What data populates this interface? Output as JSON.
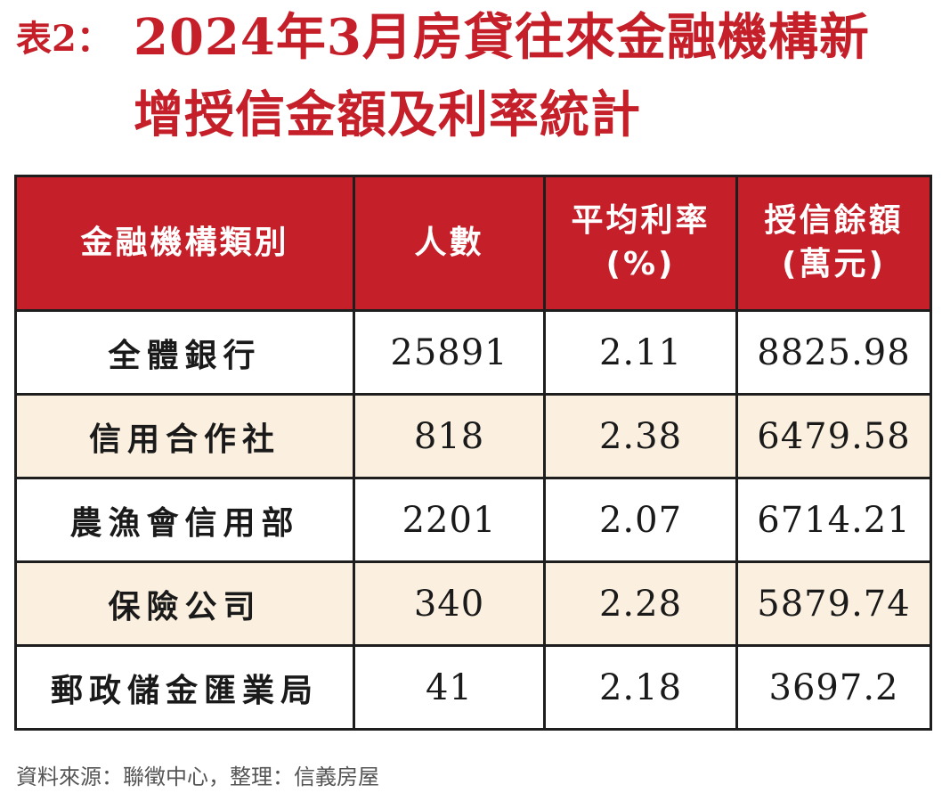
{
  "title": {
    "prefix": "表2：",
    "line1": "2024年3月房貸往來金融機構新",
    "line2": "增授信金額及利率統計"
  },
  "source": "資料來源：聯徵中心，整理：信義房屋",
  "chart_data": {
    "type": "table",
    "columns": [
      {
        "line1": "金融機構類別",
        "line2": ""
      },
      {
        "line1": "人數",
        "line2": ""
      },
      {
        "line1": "平均利率",
        "line2": "(%)"
      },
      {
        "line1": "授信餘額",
        "line2": "(萬元)"
      }
    ],
    "rows": [
      {
        "category": "全體銀行",
        "count": "25891",
        "avg_rate": "2.11",
        "balance": "8825.98"
      },
      {
        "category": "信用合作社",
        "count": "818",
        "avg_rate": "2.38",
        "balance": "6479.58"
      },
      {
        "category": "農漁會信用部",
        "count": "2201",
        "avg_rate": "2.07",
        "balance": "6714.21"
      },
      {
        "category": "保險公司",
        "count": "340",
        "avg_rate": "2.28",
        "balance": "5879.74"
      },
      {
        "category": "郵政儲金匯業局",
        "count": "41",
        "avg_rate": "2.18",
        "balance": "3697.2"
      }
    ]
  },
  "colors": {
    "accent": "#c51f2a",
    "stripe": "#fbf0df",
    "border": "#1e1e1e"
  }
}
